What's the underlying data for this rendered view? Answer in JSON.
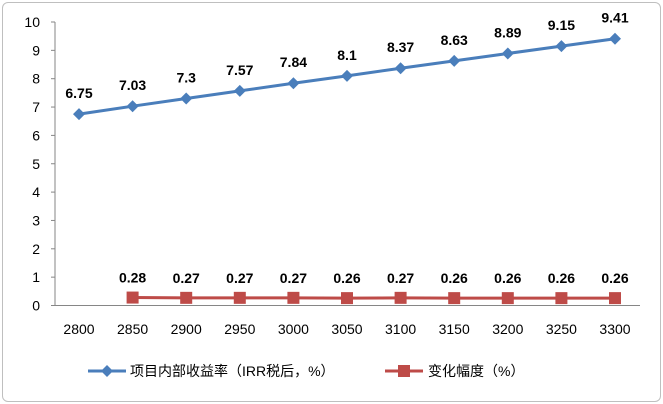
{
  "chart_data": {
    "type": "line",
    "categories": [
      "2800",
      "2850",
      "2900",
      "2950",
      "3000",
      "3050",
      "3100",
      "3150",
      "3200",
      "3250",
      "3300"
    ],
    "series": [
      {
        "name": "项目内部收益率（IRR税后，%）",
        "color": "#4a7ebb",
        "marker": "diamond",
        "values": [
          6.75,
          7.03,
          7.3,
          7.57,
          7.84,
          8.1,
          8.37,
          8.63,
          8.89,
          9.15,
          9.41
        ],
        "labels": [
          "6.75",
          "7.03",
          "7.3",
          "7.57",
          "7.84",
          "8.1",
          "8.37",
          "8.63",
          "8.89",
          "9.15",
          "9.41"
        ]
      },
      {
        "name": "变化幅度（%）",
        "color": "#be4b48",
        "marker": "square",
        "values": [
          null,
          0.28,
          0.27,
          0.27,
          0.27,
          0.26,
          0.27,
          0.26,
          0.26,
          0.26,
          0.26
        ],
        "labels": [
          null,
          "0.28",
          "0.27",
          "0.27",
          "0.27",
          "0.26",
          "0.27",
          "0.26",
          "0.26",
          "0.26",
          "0.26"
        ]
      }
    ],
    "y_ticks": [
      "0",
      "1",
      "2",
      "3",
      "4",
      "5",
      "6",
      "7",
      "8",
      "9",
      "10"
    ],
    "ylim": [
      0,
      10
    ],
    "grid": false,
    "legend_position": "bottom"
  }
}
